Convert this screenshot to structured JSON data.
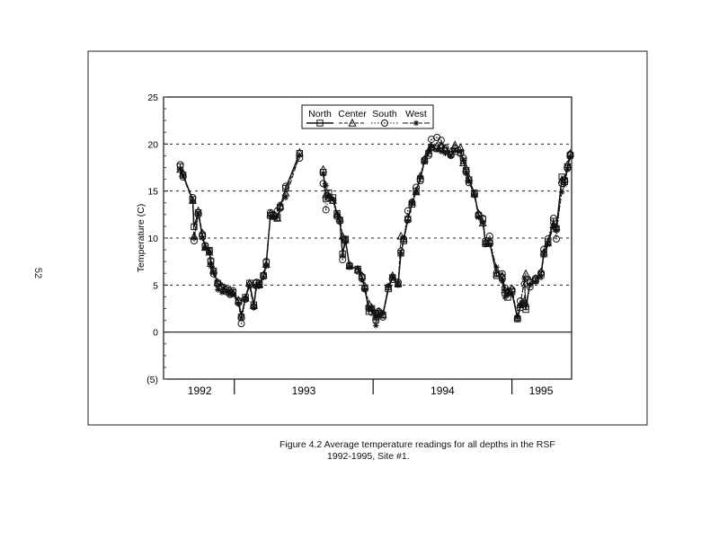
{
  "page_number": "52",
  "caption": {
    "line1": "Figure 4.2  Average temperature readings for all depths in the RSF",
    "line2": "1992-1995, Site #1."
  },
  "chart_data": {
    "type": "line",
    "title": "",
    "xlabel": "",
    "ylabel": "Temperature (C)",
    "xlim": [
      1992.49,
      1995.43
    ],
    "ylim": [
      -5,
      25
    ],
    "yticks": [
      25,
      20,
      15,
      10,
      5,
      0,
      -5
    ],
    "ytick_labels": [
      "25",
      "20",
      "15",
      "10",
      "5",
      "0",
      "(5)"
    ],
    "gridlines_y": [
      5,
      10,
      15,
      20
    ],
    "year_dividers": [
      1993,
      1994,
      1995
    ],
    "year_labels": [
      {
        "label": "1992",
        "center": 1992.75
      },
      {
        "label": "1993",
        "center": 1993.5
      },
      {
        "label": "1994",
        "center": 1994.5
      },
      {
        "label": "1995",
        "center": 1995.21
      }
    ],
    "legend": {
      "placement": "top-center",
      "entries": [
        "North",
        "Center",
        "South",
        "West"
      ]
    },
    "x": [
      1992.61,
      1992.63,
      1992.7,
      1992.71,
      1992.74,
      1992.77,
      1992.79,
      1992.82,
      1992.83,
      1992.85,
      1992.88,
      1992.91,
      1992.94,
      1992.97,
      1992.99,
      1993.03,
      1993.05,
      1993.08,
      1993.11,
      1993.14,
      1993.16,
      1993.18,
      1993.21,
      1993.23,
      1993.26,
      1993.28,
      1993.31,
      1993.33,
      1993.37,
      1993.47,
      1993.55,
      1993.64,
      1993.66,
      1993.68,
      1993.71,
      1993.74,
      1993.76,
      1993.78,
      1993.8,
      1993.83,
      1993.89,
      1993.92,
      1993.94,
      1993.97,
      1993.99,
      1994.02,
      1994.04,
      1994.07,
      1994.11,
      1994.14,
      1994.18,
      1994.2,
      1994.22,
      1994.25,
      1994.28,
      1994.31,
      1994.34,
      1994.37,
      1994.4,
      1994.42,
      1994.46,
      1994.49,
      1994.52,
      1994.56,
      1994.59,
      1994.63,
      1994.65,
      1994.67,
      1994.69,
      1994.73,
      1994.76,
      1994.79,
      1994.81,
      1994.84,
      1994.89,
      1994.93,
      1994.95,
      1994.97,
      1995.0,
      1995.04,
      1995.06,
      1995.09,
      1995.1,
      1995.13,
      1995.17,
      1995.21,
      1995.23,
      1995.26,
      1995.3,
      1995.32,
      1995.36,
      1995.38,
      1995.4,
      1995.42
    ],
    "series": [
      {
        "name": "North",
        "marker": "square",
        "line": "solid",
        "values": [
          17.6,
          16.7,
          14.1,
          11.2,
          12.7,
          10.2,
          9.1,
          8.7,
          7.5,
          6.5,
          5.2,
          4.8,
          4.5,
          4.2,
          4.2,
          3.3,
          1.6,
          3.7,
          5.2,
          2.9,
          5.2,
          5.0,
          6.0,
          7.4,
          12.4,
          12.4,
          12.2,
          13.3,
          15.3,
          19.0,
          null,
          17.0,
          14.2,
          14.8,
          14.3,
          12.6,
          11.9,
          8.3,
          9.9,
          7.0,
          6.7,
          5.8,
          4.7,
          2.2,
          2.5,
          1.3,
          2.0,
          1.8,
          4.6,
          5.8,
          5.1,
          8.4,
          9.7,
          12.0,
          13.6,
          15.0,
          16.3,
          18.2,
          19.0,
          19.6,
          19.5,
          19.6,
          19.3,
          18.9,
          19.2,
          19.1,
          18.2,
          17.2,
          16.2,
          14.8,
          12.4,
          12.0,
          9.4,
          9.5,
          6.0,
          5.8,
          4.2,
          3.7,
          4.3,
          1.4,
          2.6,
          3.1,
          2.4,
          5.3,
          5.5,
          6.1,
          8.3,
          9.6,
          11.8,
          11.0,
          16.5,
          16.0,
          17.6,
          18.8
        ]
      },
      {
        "name": "Center",
        "marker": "triangle",
        "line": "dashed",
        "values": [
          17.3,
          16.9,
          14.0,
          10.2,
          12.9,
          10.5,
          9.0,
          8.5,
          7.3,
          6.6,
          5.3,
          4.9,
          4.6,
          4.5,
          4.2,
          3.4,
          1.8,
          3.6,
          5.2,
          2.8,
          5.0,
          5.1,
          6.1,
          7.2,
          12.6,
          12.3,
          12.1,
          13.4,
          14.8,
          19.1,
          null,
          17.3,
          14.6,
          14.5,
          14.0,
          12.5,
          12.1,
          10.2,
          9.8,
          7.1,
          6.6,
          6.0,
          4.9,
          3.0,
          2.6,
          1.6,
          2.2,
          1.9,
          4.8,
          6.0,
          5.2,
          10.2,
          9.9,
          12.2,
          13.8,
          14.9,
          16.6,
          18.4,
          19.3,
          19.7,
          19.8,
          19.9,
          19.5,
          19.2,
          19.9,
          19.6,
          18.0,
          17.4,
          16.4,
          14.7,
          12.6,
          11.6,
          9.6,
          9.7,
          6.2,
          6.0,
          4.5,
          4.4,
          4.6,
          1.6,
          2.9,
          3.3,
          6.2,
          5.5,
          5.7,
          6.4,
          8.5,
          9.5,
          11.4,
          11.2,
          16.2,
          16.3,
          17.8,
          19.0
        ]
      },
      {
        "name": "South",
        "marker": "circle",
        "line": "dotted",
        "values": [
          17.8,
          16.5,
          14.3,
          9.7,
          12.5,
          10.4,
          9.2,
          8.6,
          7.6,
          6.2,
          5.1,
          4.7,
          4.3,
          4.0,
          4.4,
          3.1,
          0.9,
          3.5,
          5.0,
          2.7,
          5.3,
          5.2,
          6.0,
          7.5,
          12.7,
          12.5,
          12.9,
          13.2,
          15.5,
          18.5,
          null,
          15.8,
          13.0,
          14.3,
          14.0,
          12.3,
          11.8,
          7.7,
          9.8,
          7.1,
          6.5,
          5.9,
          4.6,
          2.5,
          2.1,
          2.0,
          2.2,
          1.6,
          4.8,
          5.6,
          5.3,
          8.6,
          9.9,
          12.9,
          13.8,
          15.4,
          16.1,
          18.3,
          18.8,
          20.5,
          20.7,
          20.4,
          19.6,
          18.8,
          19.5,
          19.0,
          18.5,
          17.0,
          15.9,
          14.7,
          12.5,
          12.1,
          9.7,
          10.2,
          6.3,
          6.2,
          4.7,
          4.2,
          4.5,
          1.5,
          3.3,
          5.1,
          2.7,
          4.8,
          5.7,
          6.3,
          8.8,
          9.9,
          12.1,
          9.9,
          15.8,
          16.2,
          17.4,
          18.9
        ]
      },
      {
        "name": "West",
        "marker": "asterisk",
        "line": "longdash",
        "values": [
          17.3,
          16.6,
          13.9,
          10.0,
          12.6,
          10.0,
          9.0,
          8.5,
          7.0,
          6.3,
          4.5,
          4.2,
          4.3,
          4.0,
          4.0,
          3.0,
          1.5,
          3.6,
          4.9,
          2.6,
          4.8,
          4.9,
          5.8,
          7.0,
          12.3,
          12.2,
          12.3,
          13.6,
          14.3,
          18.8,
          null,
          16.8,
          15.6,
          14.5,
          14.1,
          12.6,
          11.8,
          8.1,
          9.6,
          6.9,
          6.8,
          5.5,
          4.5,
          2.4,
          2.6,
          0.7,
          1.8,
          2.0,
          4.9,
          5.9,
          5.0,
          8.3,
          10.0,
          11.8,
          13.7,
          14.9,
          16.5,
          18.2,
          19.2,
          19.8,
          19.4,
          19.2,
          19.0,
          18.7,
          19.3,
          19.2,
          18.3,
          16.9,
          16.0,
          14.5,
          12.2,
          11.6,
          9.3,
          9.3,
          6.9,
          5.4,
          3.7,
          4.1,
          4.0,
          1.6,
          2.8,
          5.7,
          3.0,
          5.0,
          5.3,
          5.8,
          8.2,
          9.3,
          11.3,
          10.8,
          14.9,
          15.7,
          17.3,
          18.6
        ]
      }
    ]
  }
}
